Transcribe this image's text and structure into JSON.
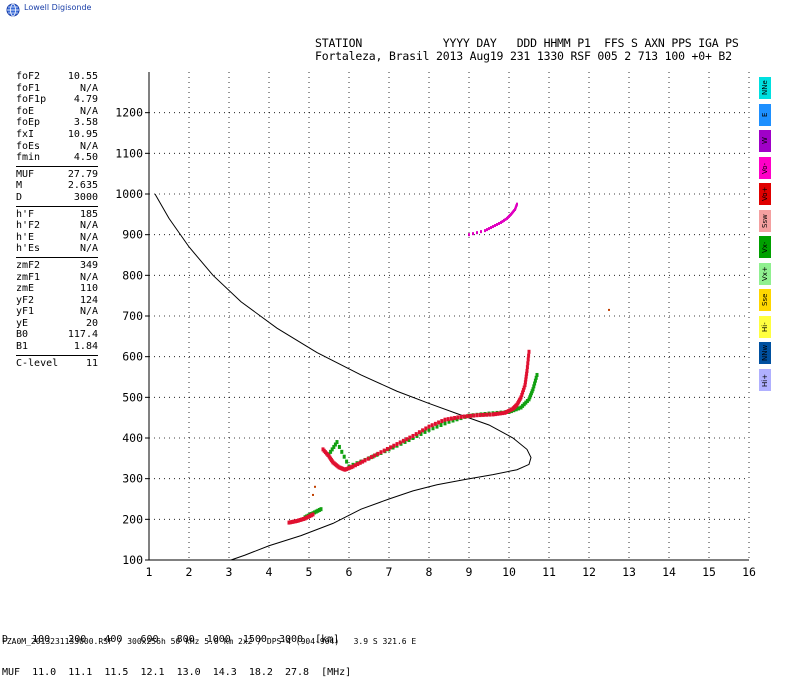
{
  "logo": {
    "text": "Lowell Digisonde"
  },
  "header": {
    "line1": "STATION            YYYY DAY   DDD HHMM P1  FFS S AXN PPS IGA PS",
    "line2": "Fortaleza, Brasil 2013 Aug19 231 1330 RSF 005 2 713 100 +0+ B2"
  },
  "params": [
    {
      "label": "foF2",
      "value": "10.55"
    },
    {
      "label": "foF1",
      "value": "N/A"
    },
    {
      "label": "foF1p",
      "value": "4.79"
    },
    {
      "label": "foE",
      "value": "N/A"
    },
    {
      "label": "foEp",
      "value": "3.58"
    },
    {
      "label": "fxI",
      "value": "10.95"
    },
    {
      "label": "foEs",
      "value": "N/A"
    },
    {
      "label": "fmin",
      "value": "4.50"
    },
    {
      "sep": true
    },
    {
      "label": "MUF",
      "value": "27.79"
    },
    {
      "label": "M",
      "value": "2.635"
    },
    {
      "label": "D",
      "value": "3000"
    },
    {
      "sep": true
    },
    {
      "label": "h'F",
      "value": "185"
    },
    {
      "label": "h'F2",
      "value": "N/A"
    },
    {
      "label": "h'E",
      "value": "N/A"
    },
    {
      "label": "h'Es",
      "value": "N/A"
    },
    {
      "sep": true
    },
    {
      "label": "zmF2",
      "value": "349"
    },
    {
      "label": "zmF1",
      "value": "N/A"
    },
    {
      "label": "zmE",
      "value": "110"
    },
    {
      "label": "yF2",
      "value": "124"
    },
    {
      "label": "yF1",
      "value": "N/A"
    },
    {
      "label": "yE",
      "value": "20"
    },
    {
      "label": "B0",
      "value": "117.4"
    },
    {
      "label": "B1",
      "value": "1.84"
    },
    {
      "sep": true
    },
    {
      "label": "C-level",
      "value": "11"
    }
  ],
  "modes": [
    {
      "label": "NNe",
      "color": "#00e0e0"
    },
    {
      "label": "E",
      "color": "#1e90ff"
    },
    {
      "label": "W",
      "color": "#a000c8"
    },
    {
      "label": "Vo-",
      "color": "#ff00c8"
    },
    {
      "label": "Vo+",
      "color": "#e00000"
    },
    {
      "label": "Ssw",
      "color": "#f4a0a0"
    },
    {
      "label": "Vx-",
      "color": "#00a000"
    },
    {
      "label": "Vx+",
      "color": "#90f090"
    },
    {
      "label": "Sse",
      "color": "#ffd700"
    },
    {
      "label": "Hi-",
      "color": "#ffff40"
    },
    {
      "label": "NNw",
      "color": "#0050a0"
    },
    {
      "label": "Hi+",
      "color": "#b0b0ff"
    }
  ],
  "muf_table": {
    "line1": "D    100   200   400   600   800  1000  1500  3000  [km]",
    "line2": "MUF  11.0  11.1  11.5  12.1  13.0  14.3  18.2  27.8  [MHz]"
  },
  "footer": "FZA0M_2013231133000.RSF / 300x256h 50 kHz 5.0 km 2x2 / DPS-4 (904-904)   3.9 S 321.6 E",
  "chart_data": {
    "type": "scatter",
    "xlabel": "",
    "ylabel": "",
    "xlim": [
      1,
      16
    ],
    "ylim": [
      100,
      1300
    ],
    "xticks": [
      1,
      2,
      3,
      4,
      5,
      6,
      7,
      8,
      9,
      10,
      11,
      12,
      13,
      14,
      15,
      16
    ],
    "yticks": [
      100,
      200,
      300,
      400,
      500,
      600,
      700,
      800,
      900,
      1000,
      1100,
      1200
    ],
    "grid": true,
    "profile": {
      "name": "",
      "color": "#000000",
      "x": [
        3.05,
        3.4,
        4.0,
        4.8,
        5.6,
        6.3,
        7.0,
        7.6,
        8.2,
        8.9,
        9.6,
        10.2,
        10.5,
        10.55,
        10.45,
        10.1,
        9.5,
        8.7,
        8.0,
        7.2,
        6.3,
        5.2,
        4.2,
        3.3,
        2.6,
        2.0,
        1.5,
        1.15
      ],
      "y": [
        100,
        112,
        135,
        160,
        190,
        225,
        250,
        270,
        285,
        298,
        310,
        322,
        335,
        352,
        372,
        400,
        432,
        460,
        485,
        515,
        555,
        610,
        670,
        735,
        800,
        870,
        940,
        1000
      ]
    },
    "trace_O": {
      "name": "",
      "color": "#e01030",
      "x": [
        4.5,
        4.7,
        4.9,
        5.1,
        5.35,
        5.5,
        5.6,
        5.75,
        5.9,
        6.1,
        6.4,
        6.8,
        7.2,
        7.6,
        8.0,
        8.4,
        8.8,
        9.2,
        9.6,
        9.9,
        10.1,
        10.2,
        10.3,
        10.4,
        10.45,
        10.5
      ],
      "y": [
        192,
        196,
        202,
        212,
        372,
        355,
        340,
        328,
        322,
        330,
        345,
        365,
        385,
        405,
        428,
        445,
        452,
        456,
        458,
        462,
        472,
        482,
        500,
        530,
        565,
        612
      ]
    },
    "trace_X": {
      "name": "",
      "color": "#10a010",
      "x": [
        4.9,
        5.1,
        5.3,
        5.5,
        5.7,
        6.0,
        6.5,
        7.0,
        7.5,
        8.0,
        8.5,
        9.0,
        9.5,
        10.0,
        10.3,
        10.5,
        10.6,
        10.7
      ],
      "y": [
        205,
        215,
        225,
        360,
        390,
        330,
        350,
        372,
        395,
        420,
        440,
        455,
        460,
        464,
        475,
        495,
        520,
        555
      ]
    },
    "trace_Vo": {
      "name": "",
      "color": "#e000c0",
      "x": [
        9.0,
        9.4,
        9.6,
        9.8,
        9.95,
        10.05,
        10.15,
        10.2
      ],
      "y": [
        900,
        910,
        920,
        930,
        940,
        950,
        962,
        975
      ]
    },
    "trace_misc": {
      "name": "",
      "color": "#c04000",
      "x": [
        12.5,
        5.1,
        5.15
      ],
      "y": [
        715,
        260,
        280
      ]
    }
  }
}
